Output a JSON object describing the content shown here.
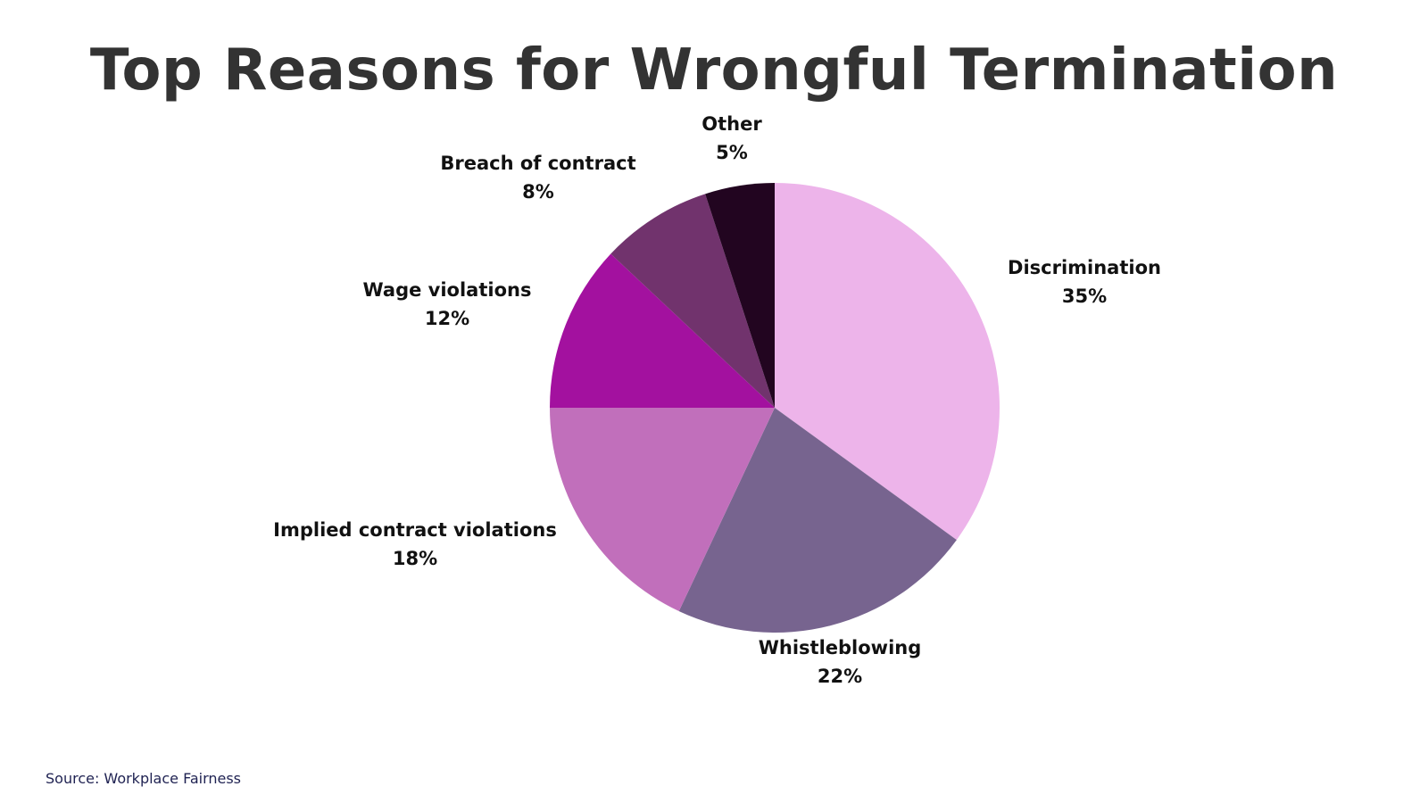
{
  "chart_data": {
    "type": "pie",
    "title": "Top Reasons for Wrongful Termination",
    "slices": [
      {
        "label": "Discrimination",
        "value": 35,
        "value_label": "35%",
        "color": "#edb4ea"
      },
      {
        "label": "Whistleblowing",
        "value": 22,
        "value_label": "22%",
        "color": "#77648f"
      },
      {
        "label": "Implied contract violations",
        "value": 18,
        "value_label": "18%",
        "color": "#c16fbb"
      },
      {
        "label": "Wage violations",
        "value": 12,
        "value_label": "12%",
        "color": "#a3119f"
      },
      {
        "label": "Breach of contract",
        "value": 8,
        "value_label": "8%",
        "color": "#71336d"
      },
      {
        "label": "Other",
        "value": 5,
        "value_label": "5%",
        "color": "#220520"
      }
    ],
    "start_angle": "12 o'clock",
    "direction": "clockwise",
    "legend": "none"
  },
  "source": "Source: Workplace Fairness"
}
